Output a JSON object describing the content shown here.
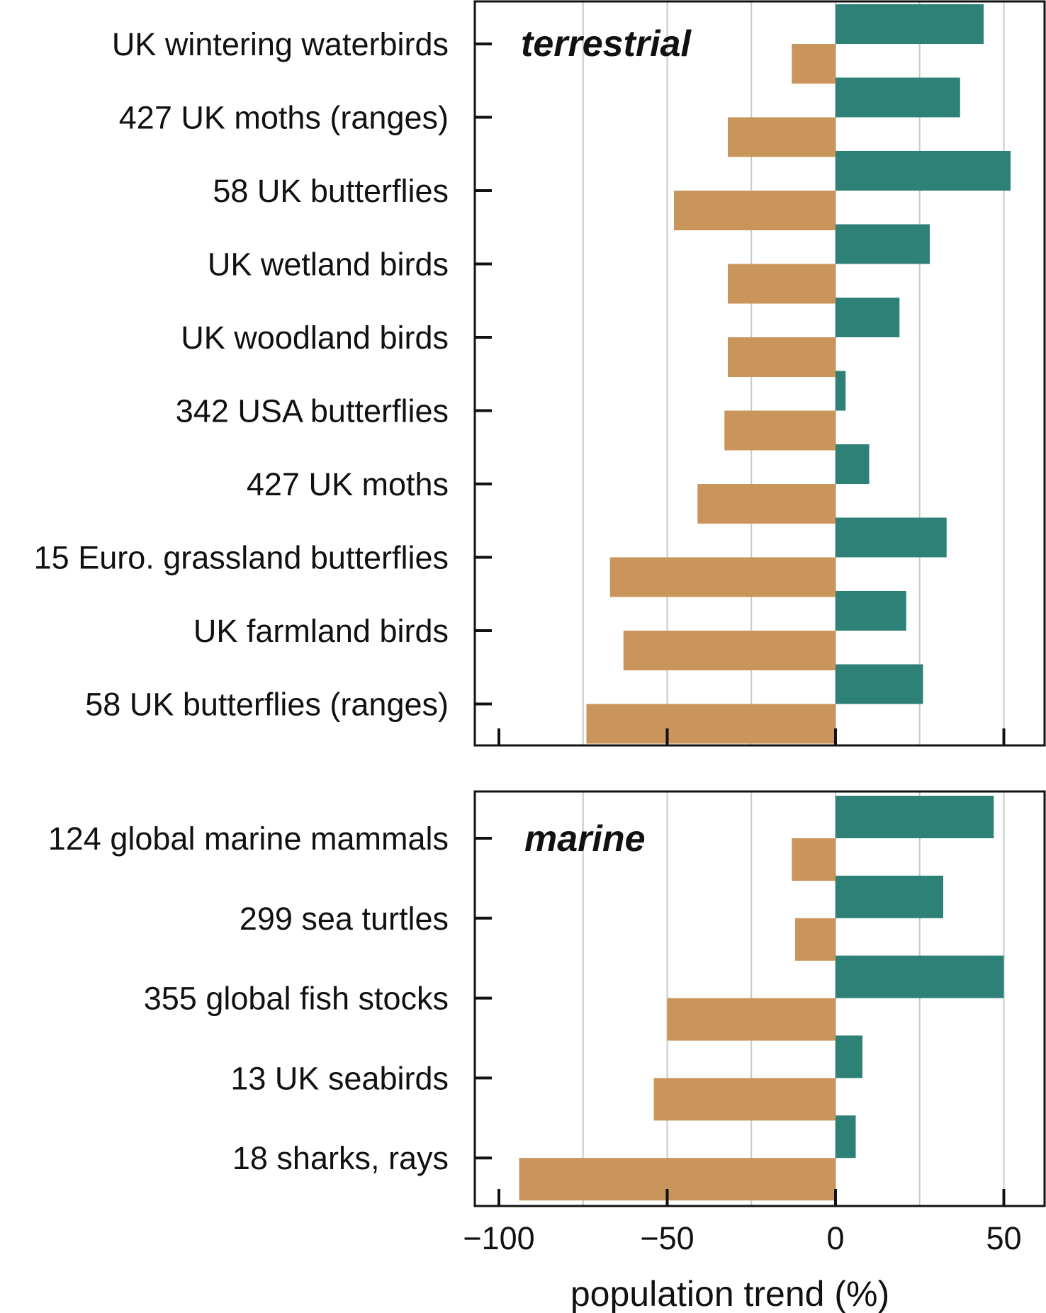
{
  "chart_data": {
    "type": "bar",
    "orientation": "horizontal",
    "xlabel": "population trend (%)",
    "xlim": [
      -100,
      62
    ],
    "xticks": [
      -100,
      -50,
      0,
      50
    ],
    "xtick_labels": [
      "−100",
      "−50",
      "0",
      "50"
    ],
    "gridlines_x": [
      -75,
      -50,
      -25,
      0,
      25,
      50
    ],
    "colors": {
      "decline": "#C9955A",
      "increase": "#2E8176"
    },
    "series_names": [
      "decline",
      "increase"
    ],
    "panels": [
      {
        "title": "terrestrial",
        "categories": [
          "UK wintering waterbirds",
          "427 UK moths (ranges)",
          "58 UK butterflies",
          "UK wetland birds",
          "UK woodland birds",
          "342 USA butterflies",
          "427 UK moths",
          "15 Euro. grassland butterflies",
          "UK farmland birds",
          "58 UK butterflies (ranges)"
        ],
        "decline": [
          -13,
          -32,
          -48,
          -32,
          -32,
          -33,
          -41,
          -67,
          -63,
          -74
        ],
        "increase": [
          44,
          37,
          52,
          28,
          19,
          3,
          10,
          33,
          21,
          26
        ]
      },
      {
        "title": "marine",
        "categories": [
          "124 global marine mammals",
          "299 sea turtles",
          "355 global fish stocks",
          "13 UK seabirds",
          "18 sharks, rays"
        ],
        "decline": [
          -13,
          -12,
          -50,
          -54,
          -94
        ],
        "increase": [
          47,
          32,
          50,
          8,
          6
        ]
      }
    ]
  }
}
